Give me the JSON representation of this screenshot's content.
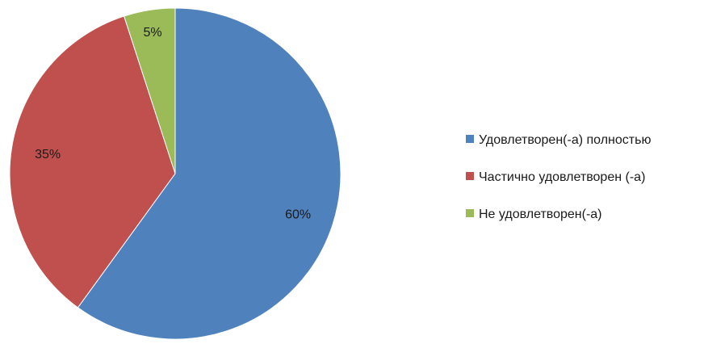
{
  "chart_data": {
    "type": "pie",
    "title": "",
    "start": "12 o'clock, clockwise",
    "legend_position": "right",
    "slices": [
      {
        "label": "Удовлетворен(-а) полностью",
        "value": 60,
        "data_label": "60%",
        "color": "#4f81bd"
      },
      {
        "label": "Частично удовлетворен (-а)",
        "value": 35,
        "data_label": "35%",
        "color": "#c0504d"
      },
      {
        "label": "Не удовлетворен(-а)",
        "value": 5,
        "data_label": "5%",
        "color": "#9bbb59"
      }
    ]
  }
}
